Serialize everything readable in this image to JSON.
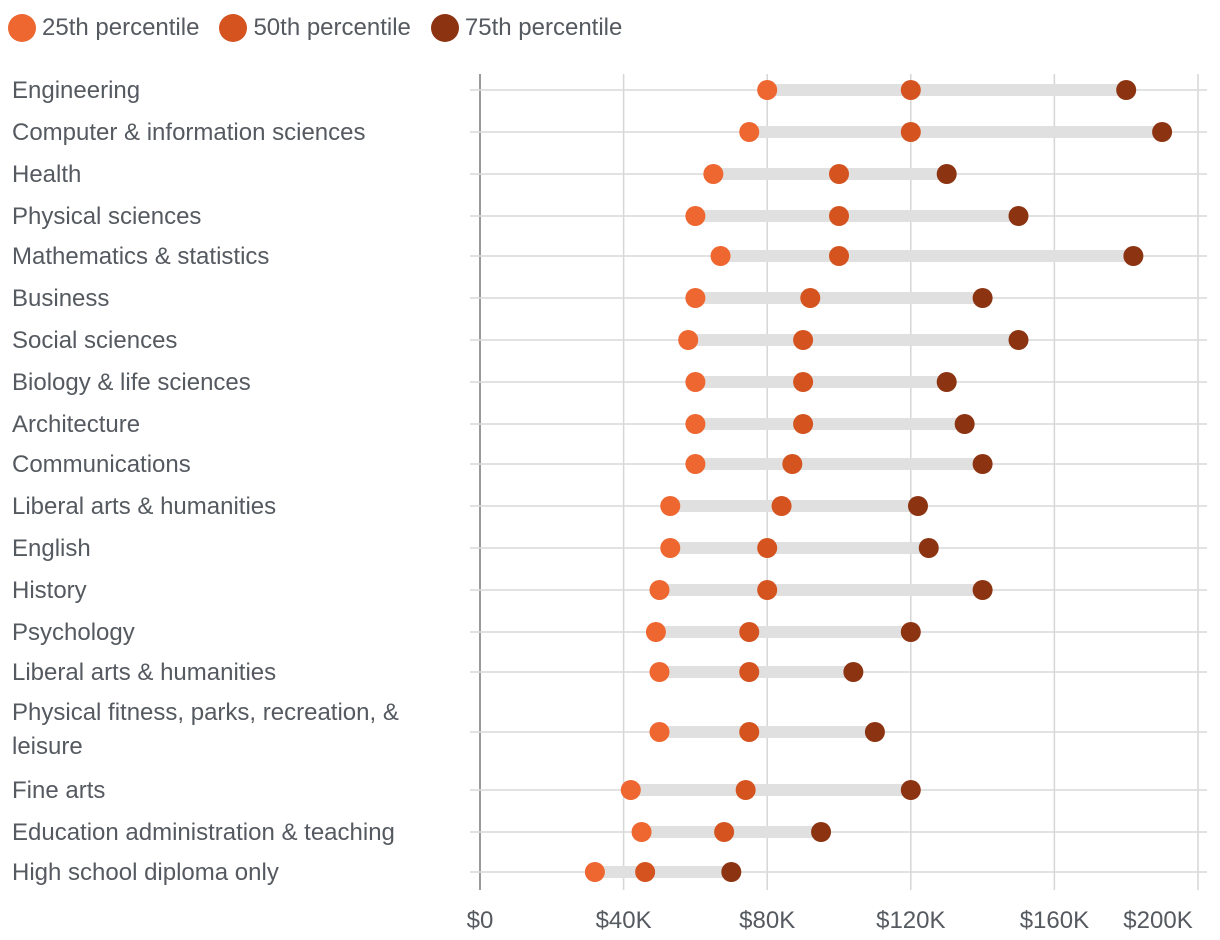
{
  "chart_data": {
    "type": "dot-range",
    "title": "",
    "xlabel": "",
    "ylabel": "",
    "xlim": [
      0,
      200000
    ],
    "x_ticks": [
      0,
      40000,
      80000,
      120000,
      160000,
      200000
    ],
    "x_tick_labels": [
      "$0",
      "$40K",
      "$80K",
      "$120K",
      "$160K",
      "$200K"
    ],
    "grid": true,
    "legend_position": "top-left",
    "series": [
      {
        "key": "p25",
        "name": "25th percentile",
        "color": "#ee6630"
      },
      {
        "key": "p50",
        "name": "50th percentile",
        "color": "#d4531f"
      },
      {
        "key": "p75",
        "name": "75th percentile",
        "color": "#8c3412"
      }
    ],
    "categories": [
      {
        "label": [
          "Engineering"
        ],
        "p25": 80000,
        "p50": 120000,
        "p75": 180000
      },
      {
        "label": [
          "Computer & information sciences"
        ],
        "p25": 75000,
        "p50": 120000,
        "p75": 190000
      },
      {
        "label": [
          "Health"
        ],
        "p25": 65000,
        "p50": 100000,
        "p75": 130000
      },
      {
        "label": [
          "Physical sciences"
        ],
        "p25": 60000,
        "p50": 100000,
        "p75": 150000
      },
      {
        "label": [
          "Mathematics & statistics"
        ],
        "p25": 67000,
        "p50": 100000,
        "p75": 182000
      },
      {
        "label": [
          "Business"
        ],
        "p25": 60000,
        "p50": 92000,
        "p75": 140000
      },
      {
        "label": [
          "Social sciences"
        ],
        "p25": 58000,
        "p50": 90000,
        "p75": 150000
      },
      {
        "label": [
          "Biology & life sciences"
        ],
        "p25": 60000,
        "p50": 90000,
        "p75": 130000
      },
      {
        "label": [
          "Architecture"
        ],
        "p25": 60000,
        "p50": 90000,
        "p75": 135000
      },
      {
        "label": [
          "Communications"
        ],
        "p25": 60000,
        "p50": 87000,
        "p75": 140000
      },
      {
        "label": [
          "Liberal arts & humanities"
        ],
        "p25": 53000,
        "p50": 84000,
        "p75": 122000
      },
      {
        "label": [
          "English"
        ],
        "p25": 53000,
        "p50": 80000,
        "p75": 125000
      },
      {
        "label": [
          "History"
        ],
        "p25": 50000,
        "p50": 80000,
        "p75": 140000
      },
      {
        "label": [
          "Psychology"
        ],
        "p25": 49000,
        "p50": 75000,
        "p75": 120000
      },
      {
        "label": [
          "Liberal arts & humanities"
        ],
        "p25": 50000,
        "p50": 75000,
        "p75": 104000
      },
      {
        "label": [
          "Physical fitness, parks, recreation, &",
          "leisure"
        ],
        "p25": 50000,
        "p50": 75000,
        "p75": 110000
      },
      {
        "label": [
          "Fine arts"
        ],
        "p25": 42000,
        "p50": 74000,
        "p75": 120000
      },
      {
        "label": [
          "Education administration & teaching"
        ],
        "p25": 45000,
        "p50": 68000,
        "p75": 95000
      },
      {
        "label": [
          "High school diploma only"
        ],
        "p25": 32000,
        "p50": 46000,
        "p75": 70000
      }
    ]
  }
}
